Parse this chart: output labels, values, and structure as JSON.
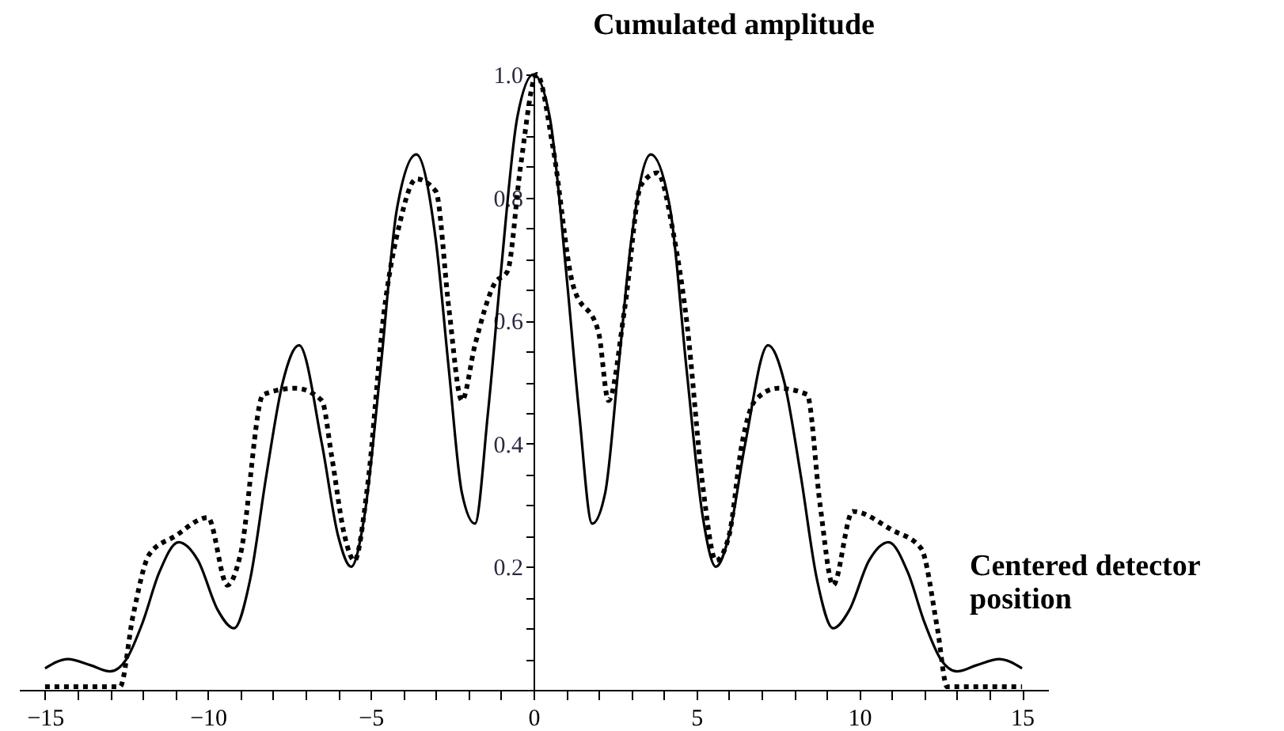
{
  "chart_data": {
    "type": "line",
    "xlabel": "Centered detector position",
    "ylabel": "Cumulated  amplitude",
    "xlim": [
      -15.8,
      15.8
    ],
    "ylim": [
      0,
      1.0
    ],
    "xticks": [
      {
        "value": -15,
        "label": "−15"
      },
      {
        "value": -14,
        "label": null
      },
      {
        "value": -13,
        "label": null
      },
      {
        "value": -12,
        "label": null
      },
      {
        "value": -11,
        "label": null
      },
      {
        "value": -10,
        "label": "−10"
      },
      {
        "value": -9,
        "label": null
      },
      {
        "value": -8,
        "label": null
      },
      {
        "value": -7,
        "label": null
      },
      {
        "value": -6,
        "label": null
      },
      {
        "value": -5,
        "label": "−5"
      },
      {
        "value": -4,
        "label": null
      },
      {
        "value": -3,
        "label": null
      },
      {
        "value": -2,
        "label": null
      },
      {
        "value": -1,
        "label": null
      },
      0,
      {
        "value": 1,
        "label": null
      },
      {
        "value": 2,
        "label": null
      },
      {
        "value": 3,
        "label": null
      },
      {
        "value": 4,
        "label": null
      },
      5,
      {
        "value": 6,
        "label": null
      },
      {
        "value": 7,
        "label": null
      },
      {
        "value": 8,
        "label": null
      },
      {
        "value": 9,
        "label": null
      },
      10,
      {
        "value": 11,
        "label": null
      },
      {
        "value": 12,
        "label": null
      },
      {
        "value": 13,
        "label": null
      },
      {
        "value": 14,
        "label": null
      },
      15
    ],
    "yticks": [
      {
        "value": 0.05,
        "label": null
      },
      {
        "value": 0.1,
        "label": null
      },
      {
        "value": 0.15,
        "label": null
      },
      0.2,
      {
        "value": 0.25,
        "label": null
      },
      {
        "value": 0.3,
        "label": null
      },
      {
        "value": 0.35,
        "label": null
      },
      0.4,
      {
        "value": 0.45,
        "label": null
      },
      {
        "value": 0.5,
        "label": null
      },
      {
        "value": 0.55,
        "label": null
      },
      0.6,
      {
        "value": 0.65,
        "label": null
      },
      {
        "value": 0.7,
        "label": null
      },
      {
        "value": 0.75,
        "label": null
      },
      0.8,
      {
        "value": 0.85,
        "label": null
      },
      {
        "value": 0.9,
        "label": null
      },
      {
        "value": 0.95,
        "label": null
      },
      {
        "value": 1.0,
        "label": "1.0"
      }
    ],
    "grid": false,
    "legend": false,
    "marker": "none",
    "series": [
      {
        "color": "#000000",
        "line_style": "solid",
        "x": [
          -15.0,
          -14.3,
          -13.6,
          -13.0,
          -12.5,
          -12.0,
          -11.5,
          -10.9,
          -10.3,
          -9.7,
          -9.2,
          -8.7,
          -8.2,
          -7.7,
          -7.2,
          -6.5,
          -6.0,
          -5.6,
          -5.2,
          -4.7,
          -4.2,
          -3.6,
          -3.0,
          -2.6,
          -2.2,
          -1.8,
          -1.4,
          -1.0,
          -0.5,
          0.0,
          0.5,
          1.0,
          1.4,
          1.8,
          2.2,
          2.6,
          3.0,
          3.6,
          4.2,
          4.7,
          5.2,
          5.6,
          6.0,
          6.5,
          7.2,
          7.7,
          8.2,
          8.7,
          9.2,
          9.7,
          10.3,
          10.9,
          11.5,
          12.0,
          12.5,
          13.0,
          13.6,
          14.3,
          15.0
        ],
        "values": [
          0.035,
          0.05,
          0.04,
          0.03,
          0.05,
          0.11,
          0.19,
          0.24,
          0.21,
          0.13,
          0.1,
          0.18,
          0.35,
          0.5,
          0.56,
          0.4,
          0.25,
          0.2,
          0.28,
          0.52,
          0.78,
          0.87,
          0.73,
          0.52,
          0.32,
          0.27,
          0.45,
          0.68,
          0.93,
          1.0,
          0.93,
          0.68,
          0.45,
          0.27,
          0.32,
          0.52,
          0.73,
          0.87,
          0.78,
          0.52,
          0.28,
          0.2,
          0.25,
          0.4,
          0.56,
          0.5,
          0.35,
          0.18,
          0.1,
          0.13,
          0.21,
          0.24,
          0.19,
          0.11,
          0.05,
          0.03,
          0.04,
          0.05,
          0.035
        ]
      },
      {
        "color": "#000000",
        "line_style": "dotted",
        "x": [
          -15.0,
          -12.7,
          -12.3,
          -11.8,
          -11.0,
          -10.0,
          -9.4,
          -9.0,
          -8.3,
          -7.3,
          -6.5,
          -6.2,
          -5.8,
          -5.5,
          -5.1,
          -4.6,
          -4.1,
          -3.6,
          -3.0,
          -2.6,
          -2.2,
          -1.8,
          -1.2,
          -0.8,
          -0.4,
          0.1,
          0.6,
          1.2,
          2.0,
          2.3,
          2.8,
          3.3,
          3.8,
          4.3,
          4.7,
          5.2,
          5.6,
          6.0,
          6.4,
          6.8,
          7.5,
          8.4,
          8.8,
          9.2,
          9.8,
          11.0,
          11.9,
          12.4,
          12.7,
          15.0
        ],
        "values": [
          0.005,
          0.005,
          0.12,
          0.22,
          0.25,
          0.28,
          0.17,
          0.22,
          0.48,
          0.49,
          0.47,
          0.38,
          0.25,
          0.21,
          0.33,
          0.61,
          0.76,
          0.83,
          0.81,
          0.62,
          0.47,
          0.56,
          0.66,
          0.68,
          0.85,
          1.0,
          0.88,
          0.66,
          0.58,
          0.47,
          0.62,
          0.82,
          0.84,
          0.74,
          0.6,
          0.33,
          0.21,
          0.25,
          0.4,
          0.47,
          0.49,
          0.48,
          0.3,
          0.17,
          0.29,
          0.26,
          0.23,
          0.1,
          0.005,
          0.005
        ]
      }
    ]
  }
}
